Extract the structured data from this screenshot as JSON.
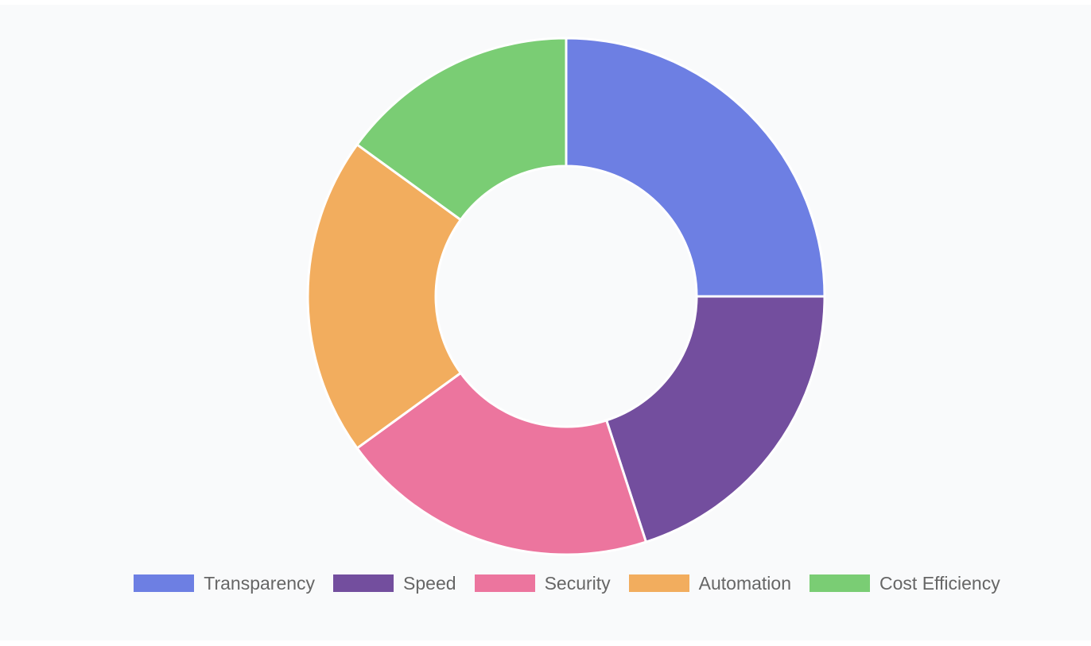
{
  "chart_data": {
    "type": "doughnut",
    "categories": [
      "Transparency",
      "Speed",
      "Security",
      "Automation",
      "Cost Efficiency"
    ],
    "values": [
      25,
      20,
      20,
      20,
      15
    ],
    "colors": [
      "#6d7fe3",
      "#734e9e",
      "#ec759e",
      "#f2ad5e",
      "#7acd74"
    ],
    "legend": {
      "position": "bottom",
      "items": [
        {
          "label": "Transparency",
          "color": "#6d7fe3"
        },
        {
          "label": "Speed",
          "color": "#734e9e"
        },
        {
          "label": "Security",
          "color": "#ec759e"
        },
        {
          "label": "Automation",
          "color": "#f2ad5e"
        },
        {
          "label": "Cost Efficiency",
          "color": "#7acd74"
        }
      ]
    }
  }
}
